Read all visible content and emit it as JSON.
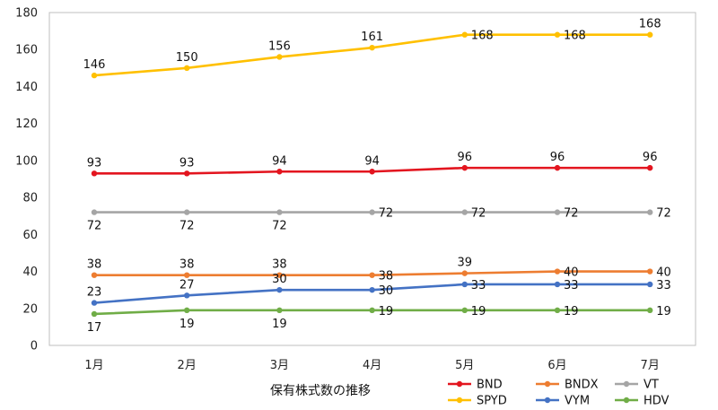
{
  "chart_data": {
    "type": "line",
    "xlabel": "保有株式数の推移",
    "ylabel": "",
    "ylim": [
      0,
      180
    ],
    "yticks": [
      0,
      20,
      40,
      60,
      80,
      100,
      120,
      140,
      160,
      180
    ],
    "categories": [
      "1月",
      "2月",
      "3月",
      "4月",
      "5月",
      "6月",
      "7月"
    ],
    "grid": false,
    "legend_position": "bottom-right",
    "series": [
      {
        "name": "BND",
        "color": "#e3151f",
        "values": [
          93,
          93,
          94,
          94,
          96,
          96,
          96
        ]
      },
      {
        "name": "BNDX",
        "color": "#ed7d31",
        "values": [
          38,
          38,
          38,
          38,
          39,
          40,
          40
        ]
      },
      {
        "name": "VT",
        "color": "#a5a5a5",
        "values": [
          72,
          72,
          72,
          72,
          72,
          72,
          72
        ]
      },
      {
        "name": "SPYD",
        "color": "#ffc000",
        "values": [
          146,
          150,
          156,
          161,
          168,
          168,
          168
        ]
      },
      {
        "name": "VYM",
        "color": "#4472c4",
        "values": [
          23,
          27,
          30,
          30,
          33,
          33,
          33
        ]
      },
      {
        "name": "HDV",
        "color": "#70ad47",
        "values": [
          17,
          19,
          19,
          19,
          19,
          19,
          19
        ]
      }
    ]
  }
}
